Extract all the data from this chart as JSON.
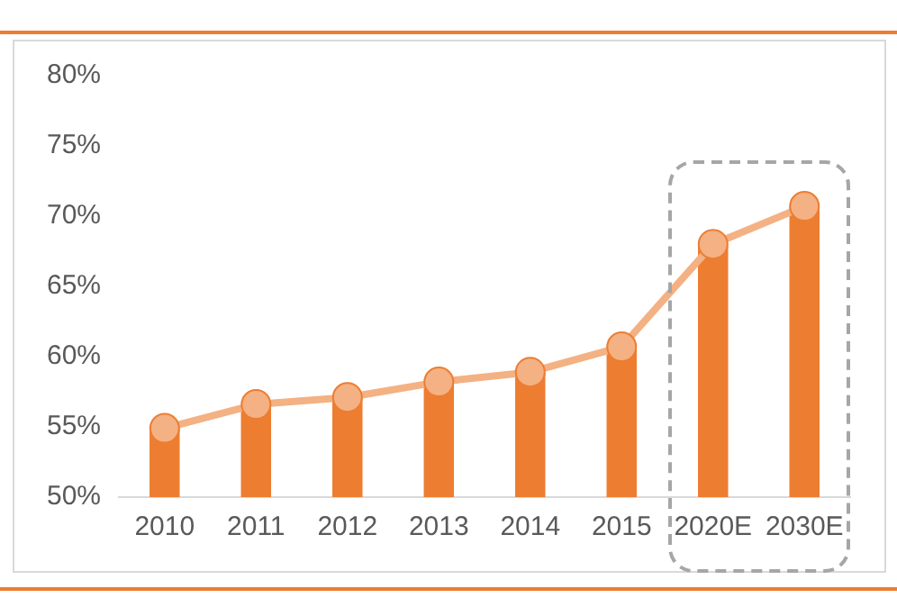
{
  "chart_data": {
    "type": "bar",
    "categories": [
      "2010",
      "2011",
      "2012",
      "2013",
      "2014",
      "2015",
      "2020E",
      "2030E"
    ],
    "series": [
      {
        "color": "#ed7d31",
        "values": [
          54.9,
          56.6,
          57.1,
          58.2,
          58.9,
          60.7,
          68.0,
          70.7
        ]
      },
      {
        "type": "line",
        "color": "#f4b183",
        "values": [
          54.9,
          56.6,
          57.1,
          58.2,
          58.9,
          60.7,
          68.0,
          70.7
        ]
      }
    ],
    "ylim": [
      50,
      80
    ],
    "yticks": [
      {
        "value": 50,
        "label": "50%"
      },
      {
        "value": 55,
        "label": "55%"
      },
      {
        "value": 60,
        "label": "60%"
      },
      {
        "value": 65,
        "label": "65%"
      },
      {
        "value": 70,
        "label": "70%"
      },
      {
        "value": 75,
        "label": "75%"
      },
      {
        "value": 80,
        "label": "80%"
      }
    ],
    "grid": false,
    "legend": false,
    "marker": "circle",
    "line_style": "solid"
  }
}
